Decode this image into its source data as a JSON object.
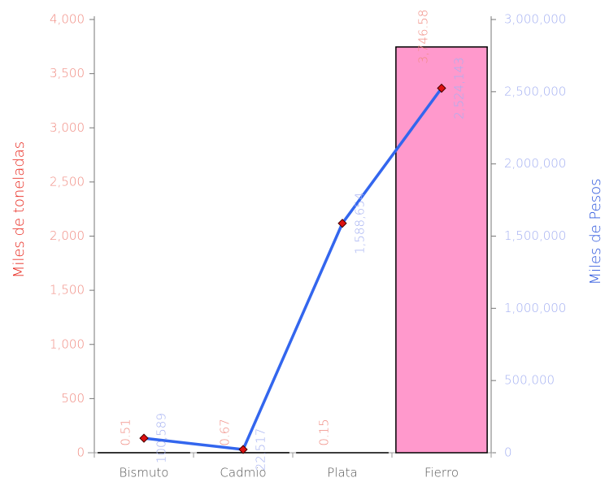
{
  "chart_data": {
    "type": "combo",
    "ylabel": "Miles de toneladas",
    "y2label": "Miles de Pesos",
    "categories": [
      "Bismuto",
      "Cadmio",
      "Plata",
      "Fierro"
    ],
    "series": [
      {
        "type": "bar",
        "color": "#ff99cc",
        "values": [
          0.51,
          0.67,
          0.15,
          3746.58
        ],
        "value_labels": [
          "0.51",
          "0.67",
          "0.15",
          "3,746.58"
        ]
      },
      {
        "type": "line",
        "axis": "y2",
        "color": "#3366ee",
        "marker_color": "#dd1111",
        "values": [
          100589,
          22517,
          1588654,
          2524143
        ],
        "value_labels": [
          "100,589",
          "22,517",
          "1,588,654",
          "2,524,143"
        ]
      }
    ],
    "ylim": [
      0,
      4000
    ],
    "yticks": [
      0,
      500,
      {
        "value": 1000,
        "label": "1,000"
      },
      {
        "value": 1500,
        "label": "1,500"
      },
      {
        "value": 2000,
        "label": "2,000"
      },
      {
        "value": 2500,
        "label": "2,500"
      },
      {
        "value": 3000,
        "label": "3,000"
      },
      {
        "value": 3500,
        "label": "3,500"
      },
      {
        "value": 4000,
        "label": "4,000"
      }
    ],
    "y2lim": [
      0,
      3000000
    ],
    "y2ticks": [
      0,
      {
        "value": 500000,
        "label": "500,000"
      },
      {
        "value": 1000000,
        "label": "1,000,000"
      },
      {
        "value": 1500000,
        "label": "1,500,000"
      },
      {
        "value": 2000000,
        "label": "2,000,000"
      },
      {
        "value": 2500000,
        "label": "2,500,000"
      },
      {
        "value": 3000000,
        "label": "3,000,000"
      }
    ]
  }
}
